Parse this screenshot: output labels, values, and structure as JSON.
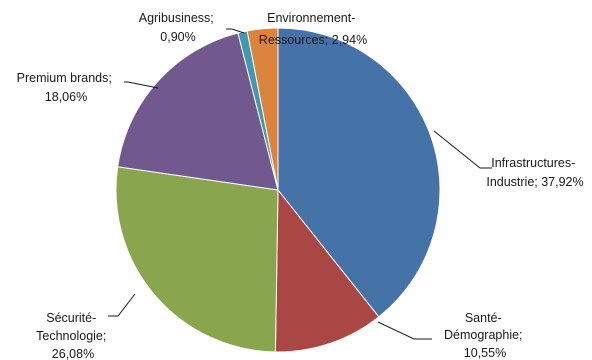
{
  "chart_data": {
    "type": "pie",
    "title": "",
    "slices": [
      {
        "label": "Infrastructures-Industrie",
        "value": 37.92,
        "display": "37,92%",
        "color": "#4572A7"
      },
      {
        "label": "Santé-Démographie",
        "value": 10.55,
        "display": "10,55%",
        "color": "#AA4643"
      },
      {
        "label": "Sécurité-Technologie",
        "value": 26.08,
        "display": "26,08%",
        "color": "#89A54E"
      },
      {
        "label": "Premium brands",
        "value": 18.06,
        "display": "18,06%",
        "color": "#71588F"
      },
      {
        "label": "Agribusiness",
        "value": 0.9,
        "display": "0,90%",
        "color": "#4198AF"
      },
      {
        "label": "Environnement-Ressources",
        "value": 2.94,
        "display": "2,94%",
        "color": "#DB843D"
      }
    ]
  }
}
